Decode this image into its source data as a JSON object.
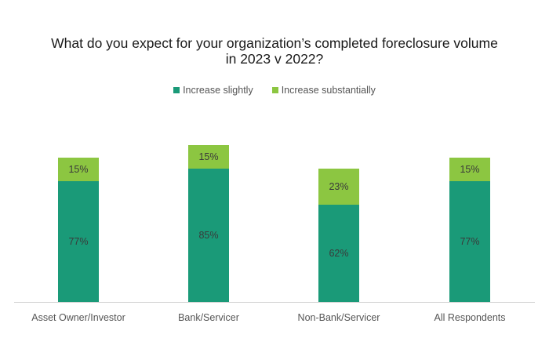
{
  "title_line1": "What do you expect for your organization’s completed foreclosure volume",
  "title_line2": "in 2023 v 2022?",
  "legend": [
    {
      "label": "Increase slightly",
      "color": "#1a9a78"
    },
    {
      "label": "Increase substantially",
      "color": "#8cc641"
    }
  ],
  "chart_data": {
    "type": "bar",
    "stacked": true,
    "categories": [
      "Asset Owner/Investor",
      "Bank/Servicer",
      "Non-Bank/Servicer",
      "All Respondents"
    ],
    "series": [
      {
        "name": "Increase slightly",
        "values": [
          77,
          85,
          62,
          77
        ],
        "labels": [
          "77%",
          "85%",
          "62%",
          "77%"
        ],
        "color": "#1a9a78"
      },
      {
        "name": "Increase substantially",
        "values": [
          15,
          15,
          23,
          15
        ],
        "labels": [
          "15%",
          "15%",
          "23%",
          "15%"
        ],
        "color": "#8cc641"
      }
    ],
    "ylim": [
      0,
      100
    ],
    "grid": false,
    "legend_position": "top-center"
  }
}
